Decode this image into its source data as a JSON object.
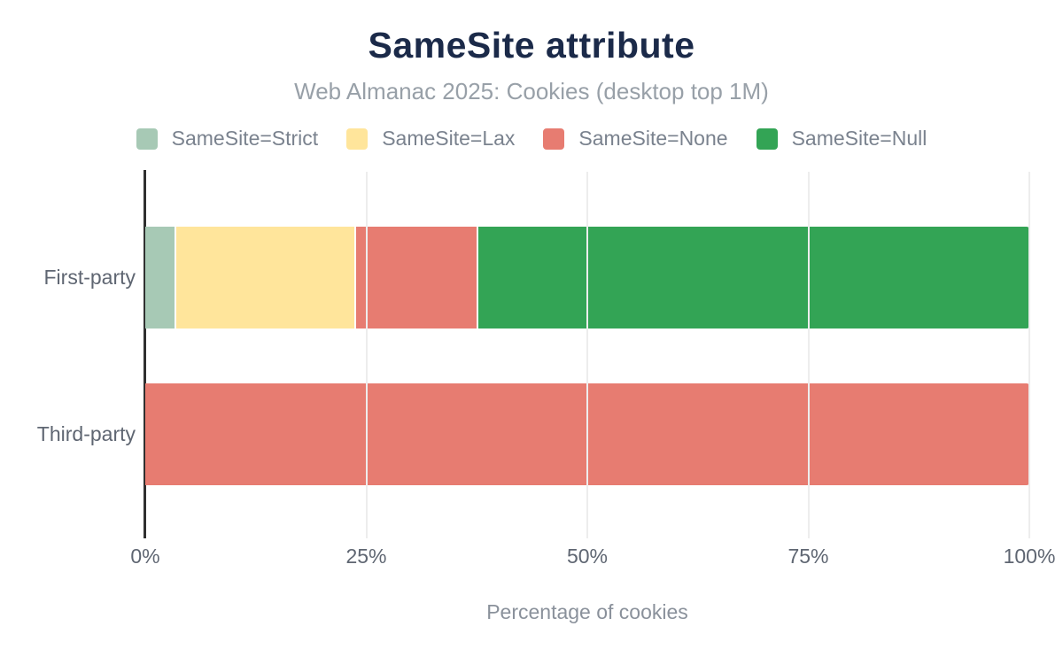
{
  "header": {
    "title": "SameSite attribute",
    "subtitle": "Web Almanac 2025: Cookies (desktop top 1M)"
  },
  "legend": {
    "items": [
      {
        "label": "SameSite=Strict",
        "color": "#A7C9B5"
      },
      {
        "label": "SameSite=Lax",
        "color": "#FFE59B"
      },
      {
        "label": "SameSite=None",
        "color": "#E77C71"
      },
      {
        "label": "SameSite=Null",
        "color": "#33A455"
      }
    ]
  },
  "chart_data": {
    "type": "bar",
    "orientation": "horizontal",
    "stacked": true,
    "title": "SameSite attribute",
    "subtitle": "Web Almanac 2025: Cookies (desktop top 1M)",
    "categories": [
      "First-party",
      "Third-party"
    ],
    "series": [
      {
        "name": "SameSite=Strict",
        "color": "#A7C9B5",
        "values": [
          3.3,
          0
        ]
      },
      {
        "name": "SameSite=Lax",
        "color": "#FFE59B",
        "values": [
          20.3,
          0
        ]
      },
      {
        "name": "SameSite=None",
        "color": "#E77C71",
        "values": [
          13.7,
          100
        ]
      },
      {
        "name": "SameSite=Null",
        "color": "#33A455",
        "values": [
          62.7,
          0
        ]
      }
    ],
    "xlabel": "Percentage of cookies",
    "ylabel": "",
    "xlim": [
      0,
      100
    ],
    "x_ticks": [
      "0%",
      "25%",
      "50%",
      "75%",
      "100%"
    ],
    "x_tick_values": [
      0,
      25,
      50,
      75,
      100
    ],
    "grid": "vertical",
    "legend_position": "top"
  },
  "colors": {
    "title_text": "#1B2A49",
    "subtitle_text": "#98A0A8",
    "legend_text": "#7A828E",
    "axis_text": "#5F6672",
    "axis_title_text": "#8A919B",
    "axis_line": "#303030",
    "gridline": "#EDEDED",
    "background": "#FFFFFF"
  }
}
